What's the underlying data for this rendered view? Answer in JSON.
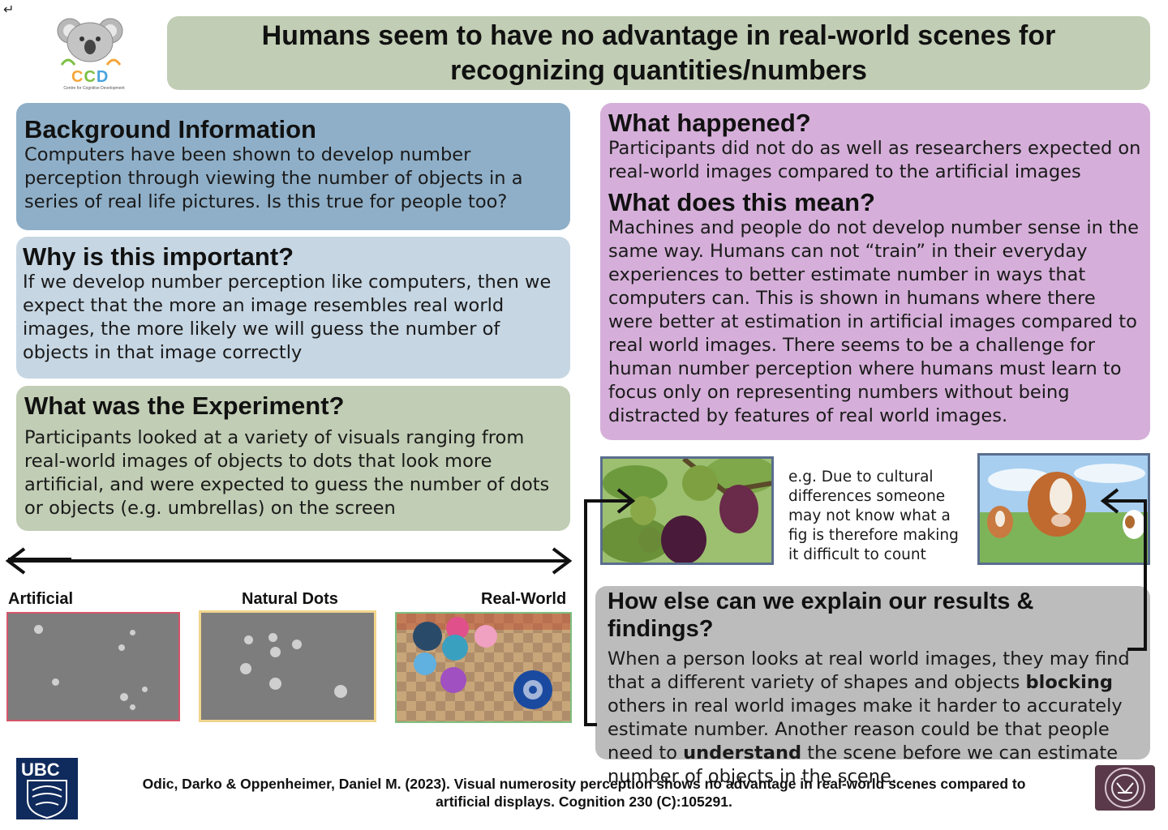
{
  "header": {
    "title": "Humans seem to have no advantage in real-world scenes for recognizing quantities/numbers"
  },
  "logo": {
    "letters": [
      "C",
      "C",
      "D"
    ],
    "subtitle": "Centre for Cognitive Development"
  },
  "background": {
    "heading": "Background Information",
    "body": "Computers have been shown to develop number perception through viewing the number of objects in a series of real life pictures. Is this true for people too?"
  },
  "why": {
    "heading": "Why is this important?",
    "body": "If we develop number perception like computers, then we expect that the more an image resembles real world images, the more likely we will guess the number of objects in that image correctly"
  },
  "experiment": {
    "heading": "What was the Experiment?",
    "body": "Participants looked at a variety of visuals ranging from real-world images of objects to dots that look more artificial, and were expected to guess the number of dots or objects (e.g. umbrellas) on the screen"
  },
  "happened": {
    "heading": "What  happened?",
    "body": "Participants did not do as well as researchers expected on real-world images compared to the artificial images"
  },
  "meaning": {
    "heading": "What does this mean?",
    "body": "Machines and people do not develop number sense in the same way. Humans can not “train” in their everyday experiences to better estimate number in ways that computers can. This is shown in humans where there were better at estimation in artificial images compared to real world images. There seems to be a challenge for human number perception where humans must learn to focus only on representing numbers without being distracted by features of real world images."
  },
  "scale": {
    "artificial": "Artificial",
    "natural": "Natural Dots",
    "real": "Real-World"
  },
  "example": {
    "text": "e.g. Due to cultural differences someone may not know what a fig is therefore making it difficult to count"
  },
  "explain": {
    "heading": "How else can we explain our results & findings?",
    "body_1": "When a person looks at real world images, they may find that a different variety of shapes and objects ",
    "bold_1": "blocking",
    "body_2": " others in real world images make it harder to accurately estimate number. Another reason could be that people need to ",
    "bold_2": "understand",
    "body_3": " the scene before we can estimate number of objects in the scene."
  },
  "logos": {
    "ubc": "UBC"
  },
  "citation": {
    "line_1": "Odic, Darko & Oppenheimer, Daniel M. (2023). Visual numerosity perception shows no advantage in real-world scenes compared to",
    "line_2": "artificial displays. Cognition 230 (C):105291."
  },
  "colors": {
    "title_bg": "#c1cdb4",
    "background_panel": "#8fafc8",
    "why_panel": "#c6d6e3",
    "experiment_panel": "#c1cdb4",
    "meaning_panel": "#d5afd9",
    "explain_panel": "#bcbcbc"
  }
}
